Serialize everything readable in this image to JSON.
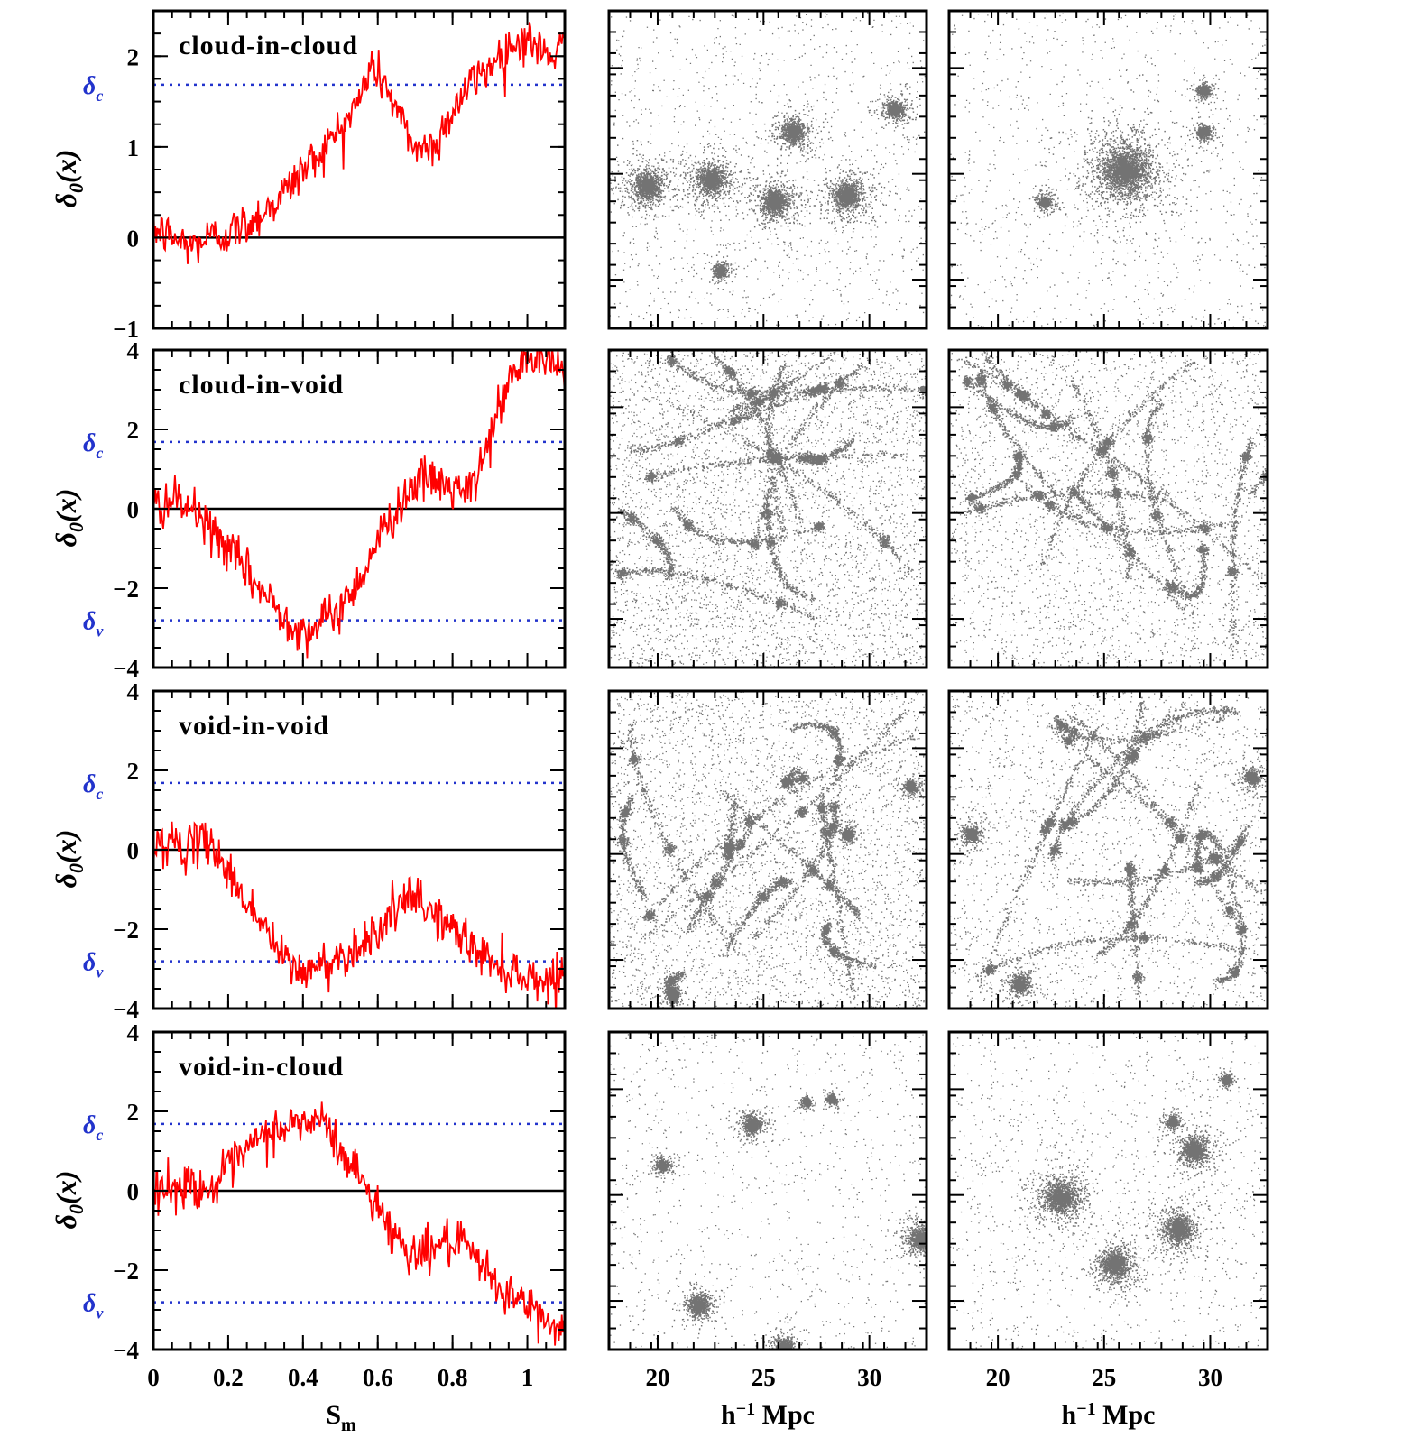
{
  "chart_data": {
    "type": "line",
    "panels": [
      {
        "label": "cloud-in-cloud",
        "ylim": [
          -1,
          2.5
        ],
        "yticks": [
          "−1",
          "0",
          "1",
          "2"
        ],
        "yvals": [
          -1,
          0,
          1,
          2
        ],
        "thresholds": [
          {
            "symbol": "δc",
            "value": 1.686,
            "color": "#2233cc"
          }
        ],
        "walk": {
          "x": [
            0,
            0.05,
            0.1,
            0.15,
            0.2,
            0.25,
            0.3,
            0.35,
            0.4,
            0.45,
            0.5,
            0.55,
            0.58,
            0.62,
            0.66,
            0.7,
            0.75,
            0.8,
            0.85,
            0.9,
            0.95,
            1.0,
            1.05,
            1.1
          ],
          "y": [
            0.1,
            0.0,
            -0.1,
            0.0,
            0.05,
            0.15,
            0.3,
            0.5,
            0.75,
            0.95,
            1.2,
            1.5,
            1.9,
            1.7,
            1.3,
            1.0,
            1.0,
            1.4,
            1.7,
            1.9,
            2.1,
            2.2,
            2.0,
            2.1
          ]
        },
        "images": [
          {
            "halos": [
              [
                0.12,
                0.55,
                0.05
              ],
              [
                0.32,
                0.53,
                0.05
              ],
              [
                0.52,
                0.6,
                0.05
              ],
              [
                0.75,
                0.58,
                0.05
              ],
              [
                0.58,
                0.38,
                0.04
              ],
              [
                0.9,
                0.31,
                0.03
              ],
              [
                0.35,
                0.82,
                0.02
              ]
            ],
            "background": 0.25,
            "filaments": false
          },
          {
            "halos": [
              [
                0.55,
                0.5,
                0.1
              ],
              [
                0.3,
                0.6,
                0.02
              ],
              [
                0.8,
                0.38,
                0.02
              ],
              [
                0.8,
                0.25,
                0.02
              ]
            ],
            "background": 0.2,
            "filaments": false
          }
        ]
      },
      {
        "label": "cloud-in-void",
        "ylim": [
          -4,
          4
        ],
        "yticks": [
          "−4",
          "−2",
          "0",
          "2",
          "4"
        ],
        "yvals": [
          -4,
          -2,
          0,
          2,
          4
        ],
        "thresholds": [
          {
            "symbol": "δc",
            "value": 1.686,
            "color": "#2233cc"
          },
          {
            "symbol": "δv",
            "value": -2.81,
            "color": "#2233cc"
          }
        ],
        "walk": {
          "x": [
            0,
            0.05,
            0.1,
            0.15,
            0.2,
            0.25,
            0.3,
            0.35,
            0.4,
            0.45,
            0.5,
            0.55,
            0.6,
            0.65,
            0.7,
            0.75,
            0.8,
            0.85,
            0.9,
            0.95,
            1.0,
            1.05,
            1.1
          ],
          "y": [
            0.1,
            0.2,
            0.0,
            -0.5,
            -1.0,
            -1.6,
            -2.2,
            -2.7,
            -3.1,
            -2.9,
            -2.5,
            -1.8,
            -0.8,
            0.0,
            0.7,
            0.7,
            0.5,
            0.4,
            1.8,
            3.2,
            3.8,
            3.7,
            3.5
          ]
        },
        "images": [
          {
            "halos": [],
            "background": 0.9,
            "filaments": true
          },
          {
            "halos": [],
            "background": 0.6,
            "filaments": true
          }
        ]
      },
      {
        "label": "void-in-void",
        "ylim": [
          -4,
          4
        ],
        "yticks": [
          "−4",
          "−2",
          "0",
          "2",
          "4"
        ],
        "yvals": [
          -4,
          -2,
          0,
          2,
          4
        ],
        "thresholds": [
          {
            "symbol": "δc",
            "value": 1.686,
            "color": "#2233cc"
          },
          {
            "symbol": "δv",
            "value": -2.81,
            "color": "#2233cc"
          }
        ],
        "walk": {
          "x": [
            0,
            0.05,
            0.1,
            0.15,
            0.2,
            0.25,
            0.3,
            0.35,
            0.4,
            0.45,
            0.5,
            0.55,
            0.6,
            0.65,
            0.7,
            0.75,
            0.8,
            0.85,
            0.9,
            0.95,
            1.0,
            1.05,
            1.1
          ],
          "y": [
            0.1,
            0.2,
            0.0,
            0.3,
            -0.6,
            -1.3,
            -2.0,
            -2.8,
            -3.1,
            -2.9,
            -2.7,
            -2.4,
            -2.0,
            -1.5,
            -1.2,
            -1.6,
            -2.0,
            -2.4,
            -2.8,
            -3.0,
            -3.2,
            -3.3,
            -3.1
          ]
        },
        "images": [
          {
            "halos": [
              [
                0.75,
                0.45,
                0.02
              ],
              [
                0.95,
                0.3,
                0.02
              ],
              [
                0.2,
                0.95,
                0.02
              ]
            ],
            "background": 0.8,
            "filaments": true
          },
          {
            "halos": [
              [
                0.07,
                0.45,
                0.025
              ],
              [
                0.95,
                0.27,
                0.025
              ],
              [
                0.22,
                0.92,
                0.03
              ]
            ],
            "background": 0.45,
            "filaments": true
          }
        ]
      },
      {
        "label": "void-in-cloud",
        "ylim": [
          -4,
          4
        ],
        "yticks": [
          "−4",
          "−2",
          "0",
          "2",
          "4"
        ],
        "yvals": [
          -4,
          -2,
          0,
          2,
          4
        ],
        "thresholds": [
          {
            "symbol": "δc",
            "value": 1.686,
            "color": "#2233cc"
          },
          {
            "symbol": "δv",
            "value": -2.81,
            "color": "#2233cc"
          }
        ],
        "walk": {
          "x": [
            0,
            0.05,
            0.1,
            0.15,
            0.2,
            0.25,
            0.3,
            0.35,
            0.4,
            0.45,
            0.5,
            0.55,
            0.6,
            0.65,
            0.7,
            0.75,
            0.8,
            0.85,
            0.9,
            0.95,
            1.0,
            1.05,
            1.1
          ],
          "y": [
            0.1,
            0.0,
            0.2,
            0.0,
            0.5,
            1.0,
            1.4,
            1.6,
            1.7,
            1.8,
            1.0,
            0.4,
            -0.4,
            -1.2,
            -1.6,
            -1.4,
            -1.3,
            -1.6,
            -2.2,
            -2.6,
            -2.9,
            -3.3,
            -3.5
          ]
        },
        "images": [
          {
            "halos": [
              [
                0.45,
                0.29,
                0.03
              ],
              [
                0.17,
                0.42,
                0.02
              ],
              [
                0.28,
                0.86,
                0.035
              ],
              [
                0.98,
                0.65,
                0.04
              ],
              [
                0.55,
                0.99,
                0.03
              ],
              [
                0.62,
                0.22,
                0.015
              ],
              [
                0.7,
                0.21,
                0.015
              ]
            ],
            "background": 0.2,
            "filaments": false
          },
          {
            "halos": [
              [
                0.35,
                0.52,
                0.06
              ],
              [
                0.52,
                0.73,
                0.05
              ],
              [
                0.72,
                0.62,
                0.05
              ],
              [
                0.77,
                0.37,
                0.045
              ],
              [
                0.7,
                0.28,
                0.02
              ],
              [
                0.87,
                0.15,
                0.015
              ]
            ],
            "background": 0.25,
            "filaments": false
          }
        ]
      }
    ],
    "walk_color": "#ff0000",
    "threshold_color": "#2233cc",
    "xlim": [
      0,
      1.1
    ],
    "xticks": [
      "0",
      "0.2",
      "0.4",
      "0.6",
      "0.8",
      "1"
    ],
    "xtick_values": [
      0,
      0.2,
      0.4,
      0.6,
      0.8,
      1
    ],
    "xlabel": "S",
    "xlabel_sub": "m",
    "ylabel": "δ",
    "ylabel_sub": "0",
    "ylabel_tail": "(x)",
    "image_xticks": [
      "20",
      "25",
      "30"
    ],
    "image_xtick_values": [
      20,
      25,
      30
    ],
    "image_xlim": [
      17.7,
      32.7
    ],
    "image_xlabel": "h",
    "image_xlabel_sup": "−1",
    "image_xlabel_tail": " Mpc"
  }
}
